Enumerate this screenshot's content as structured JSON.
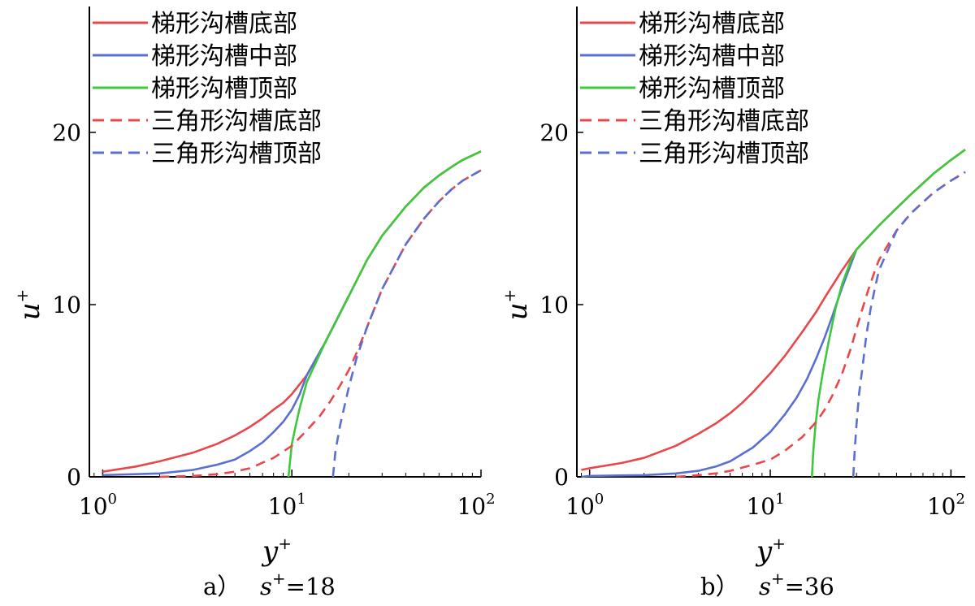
{
  "chart_data": [
    {
      "type": "line",
      "panel": "a",
      "caption": {
        "label": "a）",
        "param": "s",
        "param_sup": "+",
        "param_value": "=18"
      },
      "xlabel": "y",
      "xlabel_sup": "+",
      "ylabel": "u",
      "ylabel_sup": "+",
      "xscale": "log",
      "xlim": [
        0.85,
        100
      ],
      "ylim": [
        0,
        26
      ],
      "x_ticks": [
        {
          "base": "10",
          "exp": "0"
        },
        {
          "base": "10",
          "exp": "1"
        },
        {
          "base": "10",
          "exp": "2"
        }
      ],
      "y_ticks": [
        "0",
        "10",
        "20"
      ],
      "legend_position": "top-left",
      "series": [
        {
          "name": "梯形沟槽底部",
          "color": "#e8474b",
          "dash": "solid",
          "x": [
            1,
            1.5,
            2,
            3,
            4,
            5,
            6,
            7,
            8,
            9,
            10,
            12,
            15,
            20,
            25,
            30,
            40,
            50,
            60,
            70,
            80,
            100
          ],
          "y": [
            0.3,
            0.6,
            0.9,
            1.4,
            1.9,
            2.4,
            2.9,
            3.4,
            3.9,
            4.3,
            4.8,
            5.9,
            7.8,
            10.5,
            12.6,
            14.0,
            15.7,
            16.8,
            17.5,
            18.0,
            18.4,
            18.9
          ]
        },
        {
          "name": "梯形沟槽中部",
          "color": "#5a6fd0",
          "dash": "solid",
          "x": [
            1,
            2,
            3,
            4,
            5,
            6,
            7,
            8,
            9,
            10,
            11,
            12,
            15,
            20
          ],
          "y": [
            0.1,
            0.2,
            0.4,
            0.7,
            1.0,
            1.5,
            2.0,
            2.6,
            3.2,
            3.9,
            4.8,
            5.9,
            7.8,
            10.5
          ]
        },
        {
          "name": "梯形沟槽顶部",
          "color": "#3dc83d",
          "dash": "solid",
          "x": [
            9.6,
            9.8,
            10,
            10.5,
            11,
            12,
            15,
            20,
            25,
            30,
            40,
            50,
            60,
            70,
            80,
            100
          ],
          "y": [
            0,
            1.0,
            1.9,
            3.0,
            4.0,
            5.5,
            7.8,
            10.5,
            12.6,
            14.0,
            15.7,
            16.8,
            17.5,
            18.0,
            18.4,
            18.9
          ]
        },
        {
          "name": "三角形沟槽底部",
          "color": "#e8474b",
          "dash": "dashed",
          "x": [
            2,
            3,
            4,
            5,
            6,
            8,
            10,
            12,
            14,
            16,
            18,
            20,
            22,
            25,
            30,
            40,
            50,
            60,
            70,
            80,
            100
          ],
          "y": [
            0,
            0.05,
            0.15,
            0.3,
            0.5,
            1.1,
            1.8,
            2.7,
            3.5,
            4.4,
            5.3,
            6.2,
            7.2,
            8.7,
            10.9,
            13.5,
            15.0,
            16.0,
            16.7,
            17.2,
            17.8
          ]
        },
        {
          "name": "三角形沟槽顶部",
          "color": "#5a6fd0",
          "dash": "dashed",
          "x": [
            16.5,
            17,
            18,
            20,
            22,
            25,
            30,
            40,
            50,
            60,
            70,
            80,
            100
          ],
          "y": [
            0,
            1.5,
            3.0,
            5.2,
            6.9,
            8.7,
            10.9,
            13.5,
            15.0,
            16.0,
            16.7,
            17.2,
            17.8
          ]
        }
      ]
    },
    {
      "type": "line",
      "panel": "b",
      "caption": {
        "label": "b）",
        "param": "s",
        "param_sup": "+",
        "param_value": "=36"
      },
      "xlabel": "y",
      "xlabel_sup": "+",
      "ylabel": "u",
      "ylabel_sup": "+",
      "xscale": "log",
      "xlim": [
        0.85,
        120
      ],
      "ylim": [
        0,
        26
      ],
      "x_ticks": [
        {
          "base": "10",
          "exp": "0"
        },
        {
          "base": "10",
          "exp": "1"
        },
        {
          "base": "10",
          "exp": "2"
        }
      ],
      "y_ticks": [
        "0",
        "10",
        "20"
      ],
      "legend_position": "top-left",
      "series": [
        {
          "name": "梯形沟槽底部",
          "color": "#e8474b",
          "dash": "solid",
          "x": [
            0.9,
            1,
            1.5,
            2,
            3,
            4,
            5,
            6,
            7,
            8,
            10,
            12,
            15,
            18,
            20,
            25,
            30,
            40,
            50,
            60,
            80,
            100,
            120
          ],
          "y": [
            0.4,
            0.5,
            0.8,
            1.1,
            1.8,
            2.5,
            3.1,
            3.7,
            4.3,
            4.9,
            6.0,
            7.0,
            8.4,
            9.6,
            10.4,
            12.0,
            13.2,
            14.6,
            15.6,
            16.4,
            17.6,
            18.4,
            19.0
          ]
        },
        {
          "name": "梯形沟槽中部",
          "color": "#5a6fd0",
          "dash": "solid",
          "x": [
            0.9,
            1,
            2,
            3,
            4,
            5,
            6,
            8,
            10,
            12,
            14,
            16,
            18,
            20,
            22,
            25,
            30
          ],
          "y": [
            0,
            0.05,
            0.1,
            0.2,
            0.35,
            0.6,
            0.9,
            1.7,
            2.6,
            3.6,
            4.6,
            5.7,
            6.9,
            8.1,
            9.3,
            11.0,
            13.2
          ]
        },
        {
          "name": "梯形沟槽顶部",
          "color": "#3dc83d",
          "dash": "solid",
          "x": [
            17,
            17.3,
            17.8,
            18.5,
            19.5,
            21,
            23,
            25,
            28,
            30,
            40,
            50,
            60,
            80,
            100,
            120
          ],
          "y": [
            0,
            1.5,
            3.0,
            4.5,
            6.0,
            7.8,
            9.8,
            11.2,
            12.6,
            13.2,
            14.6,
            15.6,
            16.4,
            17.6,
            18.4,
            19.0
          ]
        },
        {
          "name": "三角形沟槽底部",
          "color": "#e8474b",
          "dash": "dashed",
          "x": [
            3,
            4,
            5,
            6,
            8,
            10,
            12,
            15,
            18,
            20,
            22,
            25,
            28,
            30,
            32,
            35,
            38,
            40,
            50,
            60,
            80,
            100,
            120
          ],
          "y": [
            0,
            0.1,
            0.2,
            0.35,
            0.7,
            1.0,
            1.5,
            2.3,
            3.2,
            3.9,
            4.7,
            6.0,
            7.5,
            8.6,
            9.6,
            10.9,
            12.0,
            12.6,
            14.3,
            15.3,
            16.5,
            17.2,
            17.7
          ]
        },
        {
          "name": "三角形沟槽顶部",
          "color": "#5a6fd0",
          "dash": "dashed",
          "x": [
            28.8,
            29.3,
            30,
            31,
            32.5,
            34,
            36,
            38,
            40,
            50,
            60,
            80,
            100,
            120
          ],
          "y": [
            0,
            1.5,
            3.0,
            4.8,
            6.5,
            8.2,
            9.8,
            11.0,
            12.0,
            14.3,
            15.3,
            16.5,
            17.2,
            17.7
          ]
        }
      ]
    }
  ]
}
